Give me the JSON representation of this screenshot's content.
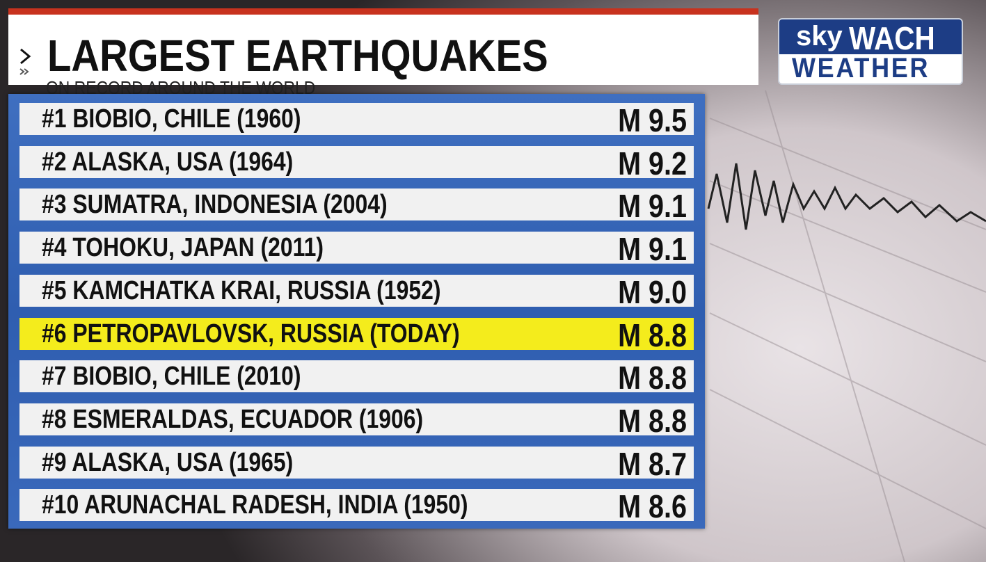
{
  "header": {
    "title": "LARGEST EARTHQUAKES",
    "subtitle": "ON RECORD AROUND THE WORLD"
  },
  "logo": {
    "sky": "sky",
    "wach": "WACH",
    "weather": "WEATHER"
  },
  "rows": [
    {
      "label": "#1 BIOBIO, CHILE (1960)",
      "magnitude": "M 9.5"
    },
    {
      "label": "#2 ALASKA, USA (1964)",
      "magnitude": "M 9.2"
    },
    {
      "label": "#3 SUMATRA, INDONESIA (2004)",
      "magnitude": "M 9.1"
    },
    {
      "label": "#4 TOHOKU, JAPAN (2011)",
      "magnitude": "M 9.1"
    },
    {
      "label": "#5 KAMCHATKA KRAI, RUSSIA (1952)",
      "magnitude": "M 9.0"
    },
    {
      "label": "#6 PETROPAVLOVSK, RUSSIA (TODAY)",
      "magnitude": "M 8.8",
      "highlighted": true
    },
    {
      "label": "#7 BIOBIO, CHILE (2010)",
      "magnitude": "M 8.8"
    },
    {
      "label": "#8 ESMERALDAS, ECUADOR (1906)",
      "magnitude": "M 8.8"
    },
    {
      "label": "#9 ALASKA, USA (1965)",
      "magnitude": "M 8.7"
    },
    {
      "label": "#10 ARUNACHAL RADESH, INDIA (1950)",
      "magnitude": "M 8.6"
    }
  ]
}
